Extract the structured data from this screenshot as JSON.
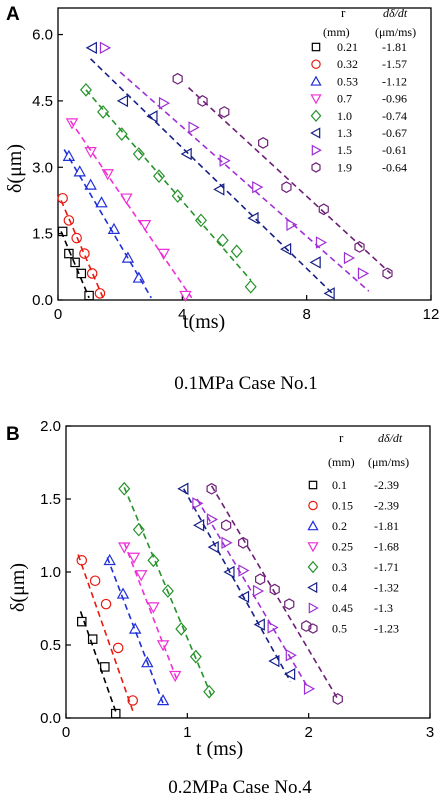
{
  "chart_data": [
    {
      "panel_label": "A",
      "type": "scatter",
      "caption": "0.1MPa Case No.1",
      "xlabel": "t(ms)",
      "ylabel": "δ(μm)",
      "xlim": [
        0,
        12
      ],
      "ylim": [
        0,
        6.6
      ],
      "xticks": [
        0,
        4,
        8,
        12
      ],
      "yticks": [
        0.0,
        1.5,
        3.0,
        4.5,
        6.0
      ],
      "ytick_labels": [
        "0.0",
        "1.5",
        "3.0",
        "4.5",
        "6.0"
      ],
      "legend_header_r": "r",
      "legend_header_r_unit": "(mm)",
      "legend_header_rate": "dδ/dt",
      "legend_header_rate_unit": "(μm/ms)",
      "legend_location": "top-right",
      "series": [
        {
          "name": "0.21",
          "rate": "-1.81",
          "marker": "square",
          "color": "#000000",
          "x": [
            0.15,
            0.35,
            0.55,
            0.75,
            1.0
          ],
          "y": [
            1.55,
            1.05,
            0.85,
            0.6,
            0.1
          ],
          "fit_x": [
            0.1,
            1.0
          ],
          "fit_y": [
            1.55,
            0.05
          ]
        },
        {
          "name": "0.32",
          "rate": "-1.57",
          "marker": "circle",
          "color": "#e8190f",
          "x": [
            0.15,
            0.35,
            0.6,
            0.85,
            1.1,
            1.35
          ],
          "y": [
            2.3,
            1.8,
            1.4,
            1.05,
            0.6,
            0.15
          ],
          "fit_x": [
            0.1,
            1.45
          ],
          "fit_y": [
            2.25,
            0.05
          ]
        },
        {
          "name": "0.53",
          "rate": "-1.12",
          "marker": "triangle-up",
          "color": "#1f2fd8",
          "x": [
            0.35,
            0.7,
            1.05,
            1.4,
            1.8,
            2.25,
            2.6
          ],
          "y": [
            3.25,
            2.9,
            2.6,
            2.2,
            1.6,
            0.95,
            0.5
          ],
          "fit_x": [
            0.2,
            3.0
          ],
          "fit_y": [
            3.4,
            0.05
          ]
        },
        {
          "name": "0.7",
          "rate": "-0.96",
          "marker": "triangle-down",
          "color": "#ee2fd6",
          "x": [
            0.45,
            1.05,
            1.6,
            2.2,
            2.8,
            3.4,
            4.1
          ],
          "y": [
            4.0,
            3.35,
            2.85,
            2.3,
            1.7,
            1.05,
            0.1
          ],
          "fit_x": [
            0.4,
            4.3
          ],
          "fit_y": [
            4.05,
            0.05
          ]
        },
        {
          "name": "1.0",
          "rate": "-0.74",
          "marker": "diamond",
          "color": "#26922a",
          "x": [
            0.9,
            1.45,
            2.05,
            2.6,
            3.25,
            3.85,
            4.6,
            5.3,
            5.75,
            6.2
          ],
          "y": [
            4.75,
            4.25,
            3.75,
            3.3,
            2.8,
            2.35,
            1.8,
            1.35,
            1.1,
            0.3
          ],
          "fit_x": [
            0.9,
            6.2
          ],
          "fit_y": [
            4.75,
            0.45
          ]
        },
        {
          "name": "1.3",
          "rate": "-0.67",
          "marker": "triangle-left",
          "color": "#151f86",
          "x": [
            1.1,
            2.1,
            3.05,
            4.15,
            5.2,
            6.3,
            7.35,
            8.3,
            8.75
          ],
          "y": [
            5.7,
            4.5,
            4.15,
            3.3,
            2.5,
            1.85,
            1.15,
            0.85,
            0.15
          ],
          "fit_x": [
            1.05,
            8.9
          ],
          "fit_y": [
            5.45,
            0.1
          ]
        },
        {
          "name": "1.5",
          "rate": "-0.61",
          "marker": "triangle-right",
          "color": "#9f2fd4",
          "x": [
            1.5,
            3.4,
            4.35,
            5.35,
            6.4,
            7.5,
            8.45,
            9.35,
            9.8
          ],
          "y": [
            5.7,
            4.45,
            3.9,
            3.15,
            2.55,
            1.7,
            1.3,
            0.95,
            0.6
          ],
          "fit_x": [
            2.0,
            10.0
          ],
          "fit_y": [
            5.15,
            0.2
          ]
        },
        {
          "name": "1.9",
          "rate": "-0.64",
          "marker": "hexagon",
          "color": "#6d1f77",
          "x": [
            3.85,
            4.65,
            5.35,
            6.6,
            7.35,
            8.55,
            9.7,
            10.6
          ],
          "y": [
            5.0,
            4.5,
            4.25,
            3.55,
            2.55,
            2.05,
            1.2,
            0.6
          ],
          "fit_x": [
            4.2,
            10.7
          ],
          "fit_y": [
            4.8,
            0.6
          ]
        }
      ]
    },
    {
      "panel_label": "B",
      "type": "scatter",
      "caption": "0.2MPa Case No.4",
      "xlabel": "t (ms)",
      "ylabel": "δ(μm)",
      "xlim": [
        0,
        3
      ],
      "ylim": [
        0,
        2.0
      ],
      "xticks": [
        0,
        1,
        2,
        3
      ],
      "yticks": [
        0.0,
        0.5,
        1.0,
        1.5,
        2.0
      ],
      "ytick_labels": [
        "0.0",
        "0.5",
        "1.0",
        "1.5",
        "2.0"
      ],
      "legend_header_r": "r",
      "legend_header_r_unit": "(mm)",
      "legend_header_rate": "dδ/dt",
      "legend_header_rate_unit": "(μm/ms)",
      "legend_location": "top-right",
      "series": [
        {
          "name": "0.1",
          "rate": "-2.39",
          "marker": "square",
          "color": "#000000",
          "x": [
            0.13,
            0.22,
            0.32,
            0.41
          ],
          "y": [
            0.66,
            0.54,
            0.35,
            0.03
          ],
          "fit_x": [
            0.12,
            0.42
          ],
          "fit_y": [
            0.73,
            0.02
          ]
        },
        {
          "name": "0.15",
          "rate": "-2.39",
          "marker": "circle",
          "color": "#e8190f",
          "x": [
            0.13,
            0.24,
            0.33,
            0.43,
            0.55
          ],
          "y": [
            1.08,
            0.94,
            0.78,
            0.48,
            0.12
          ],
          "fit_x": [
            0.1,
            0.55
          ],
          "fit_y": [
            1.12,
            0.05
          ]
        },
        {
          "name": "0.2",
          "rate": "-1.81",
          "marker": "triangle-up",
          "color": "#1f2fd8",
          "x": [
            0.36,
            0.47,
            0.57,
            0.67,
            0.8
          ],
          "y": [
            1.08,
            0.85,
            0.61,
            0.38,
            0.12
          ],
          "fit_x": [
            0.34,
            0.8
          ],
          "fit_y": [
            1.1,
            0.1
          ]
        },
        {
          "name": "0.25",
          "rate": "-1.68",
          "marker": "triangle-down",
          "color": "#ee2fd6",
          "x": [
            0.48,
            0.56,
            0.62,
            0.72,
            0.8,
            0.9
          ],
          "y": [
            1.17,
            1.1,
            0.98,
            0.76,
            0.5,
            0.29
          ],
          "fit_x": [
            0.48,
            0.92
          ],
          "fit_y": [
            1.2,
            0.25
          ]
        },
        {
          "name": "0.3",
          "rate": "-1.71",
          "marker": "diamond",
          "color": "#26922a",
          "x": [
            0.48,
            0.6,
            0.72,
            0.84,
            0.95,
            1.07,
            1.18
          ],
          "y": [
            1.57,
            1.29,
            1.08,
            0.87,
            0.61,
            0.42,
            0.18
          ],
          "fit_x": [
            0.48,
            1.2
          ],
          "fit_y": [
            1.58,
            0.15
          ]
        },
        {
          "name": "0.4",
          "rate": "-1.32",
          "marker": "triangle-left",
          "color": "#151f86",
          "x": [
            0.97,
            1.1,
            1.22,
            1.35,
            1.47,
            1.6,
            1.72,
            1.85
          ],
          "y": [
            1.57,
            1.32,
            1.17,
            1.0,
            0.83,
            0.64,
            0.39,
            0.3
          ],
          "fit_x": [
            0.97,
            1.85
          ],
          "fit_y": [
            1.57,
            0.25
          ]
        },
        {
          "name": "0.45",
          "rate": "-1.3",
          "marker": "triangle-right",
          "color": "#9f2fd4",
          "x": [
            1.08,
            1.2,
            1.32,
            1.46,
            1.58,
            1.7,
            1.85,
            2.0
          ],
          "y": [
            1.47,
            1.36,
            1.2,
            1.01,
            0.87,
            0.62,
            0.43,
            0.2
          ],
          "fit_x": [
            1.08,
            2.0
          ],
          "fit_y": [
            1.5,
            0.2
          ]
        },
        {
          "name": "0.5",
          "rate": "-1.23",
          "marker": "hexagon",
          "color": "#6d1f77",
          "x": [
            1.2,
            1.32,
            1.46,
            1.6,
            1.72,
            1.84,
            1.98,
            2.24
          ],
          "y": [
            1.57,
            1.32,
            1.2,
            0.95,
            0.88,
            0.78,
            0.63,
            0.13
          ],
          "fit_x": [
            1.2,
            2.24
          ],
          "fit_y": [
            1.59,
            0.13
          ]
        }
      ]
    }
  ]
}
